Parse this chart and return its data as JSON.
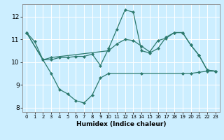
{
  "title": "",
  "xlabel": "Humidex (Indice chaleur)",
  "bg_color": "#cceeff",
  "line_color": "#2d7a6e",
  "grid_color": "#ffffff",
  "xlim": [
    -0.5,
    23.5
  ],
  "ylim": [
    7.8,
    12.55
  ],
  "xticks": [
    0,
    1,
    2,
    3,
    4,
    5,
    6,
    7,
    8,
    9,
    10,
    11,
    12,
    13,
    14,
    15,
    16,
    17,
    18,
    19,
    20,
    21,
    22,
    23
  ],
  "yticks": [
    8,
    9,
    10,
    11,
    12
  ],
  "series": [
    {
      "x": [
        0,
        1,
        2,
        3,
        4,
        5,
        6,
        7,
        8,
        9,
        10,
        11,
        12,
        13,
        14,
        15,
        16,
        17,
        18,
        19,
        20,
        21,
        22,
        23
      ],
      "y": [
        11.3,
        10.9,
        10.1,
        10.1,
        10.2,
        10.2,
        10.25,
        10.25,
        10.35,
        9.85,
        10.6,
        11.45,
        12.3,
        12.2,
        10.5,
        10.4,
        10.6,
        11.1,
        11.3,
        11.3,
        10.75,
        10.3,
        9.65,
        9.6
      ]
    },
    {
      "x": [
        0,
        3,
        4,
        5,
        6,
        7,
        8,
        9,
        10,
        14,
        19,
        20,
        21,
        22,
        23
      ],
      "y": [
        11.3,
        9.5,
        8.8,
        8.6,
        8.3,
        8.2,
        8.55,
        9.3,
        9.5,
        9.5,
        9.5,
        9.5,
        9.55,
        9.6,
        9.6
      ]
    },
    {
      "x": [
        0,
        2,
        3,
        10,
        11,
        12,
        13,
        14,
        15,
        16,
        17,
        18,
        19,
        20,
        21,
        22,
        23
      ],
      "y": [
        11.3,
        10.1,
        10.2,
        10.5,
        10.8,
        11.0,
        10.95,
        10.7,
        10.45,
        10.95,
        11.05,
        11.3,
        11.3,
        10.75,
        10.3,
        9.65,
        9.6
      ]
    }
  ]
}
